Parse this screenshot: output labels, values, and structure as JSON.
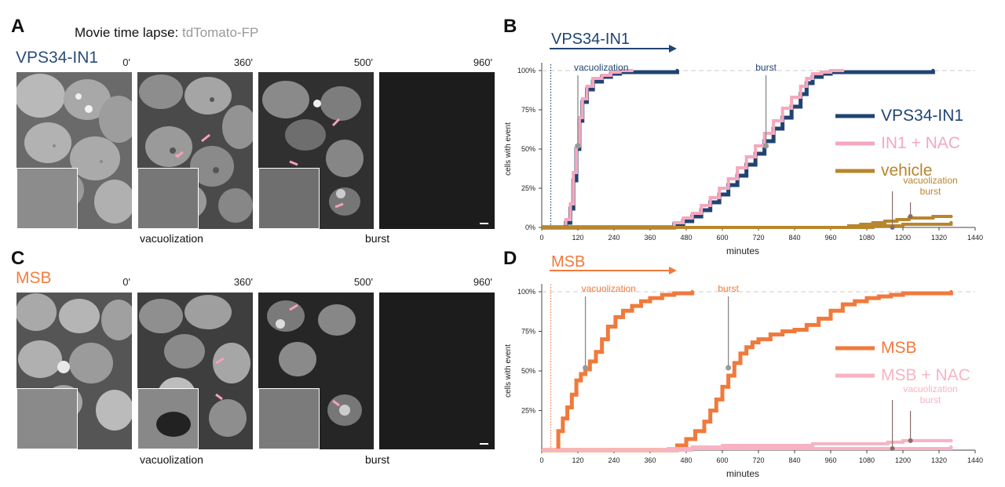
{
  "panels": {
    "A": "A",
    "B": "B",
    "C": "C",
    "D": "D"
  },
  "figure_title": {
    "prefix": "Movie time lapse: ",
    "fp": "tdTomato-FP"
  },
  "rowA": {
    "condition": "VPS34-IN1",
    "condition_color": "#2a4d7a",
    "timepoints": [
      "0'",
      "360'",
      "500'",
      "960'"
    ],
    "caption_left": "vacuolization",
    "caption_right": "burst"
  },
  "rowC": {
    "condition": "MSB",
    "condition_color": "#f08040",
    "timepoints": [
      "0'",
      "360'",
      "500'",
      "960'"
    ],
    "caption_left": "vacuolization",
    "caption_right": "burst"
  },
  "colors": {
    "vps": "#1f4473",
    "in1nac": "#f5a8bd",
    "vehicle": "#b8862e",
    "msb": "#f07a3c",
    "msbnac": "#f7b3c4",
    "arrow": "#f7a1b5"
  },
  "chart_data": [
    {
      "type": "line",
      "panel": "B",
      "header": "VPS34-IN1",
      "xlabel": "minutes",
      "ylabel": "cells with event",
      "xlim": [
        0,
        1440
      ],
      "ylim": [
        0,
        100
      ],
      "xticks": [
        0,
        120,
        240,
        360,
        480,
        600,
        720,
        840,
        960,
        1080,
        1200,
        1320,
        1440
      ],
      "yticks": [
        0,
        25,
        50,
        75,
        100
      ],
      "ytick_labels": [
        "0%",
        "25%",
        "50%",
        "75%",
        "100%"
      ],
      "annotations": [
        {
          "text": "vacuolization",
          "x": 120,
          "y": 52
        },
        {
          "text": "burst",
          "x": 745,
          "y": 52
        }
      ],
      "legend": [
        {
          "name": "VPS34-IN1",
          "color": "#1f4473"
        },
        {
          "name": "IN1 + NAC",
          "color": "#f5a8bd"
        },
        {
          "name": "vehicle",
          "color": "#b8862e"
        }
      ],
      "vehicle_labels": [
        "vacuolization",
        "burst"
      ],
      "series": [
        {
          "name": "VPS34-IN1",
          "event": "vacuolization",
          "x": [
            0,
            60,
            80,
            95,
            105,
            115,
            125,
            135,
            150,
            170,
            200,
            230,
            260,
            300,
            350,
            400,
            450
          ],
          "y": [
            0,
            0,
            3,
            12,
            30,
            50,
            68,
            80,
            88,
            93,
            96,
            98,
            99,
            99,
            99,
            99,
            100
          ]
        },
        {
          "name": "IN1 + NAC",
          "event": "vacuolization",
          "x": [
            0,
            60,
            80,
            95,
            105,
            115,
            125,
            135,
            150,
            170,
            200,
            230,
            260,
            300
          ],
          "y": [
            0,
            0,
            5,
            15,
            35,
            52,
            70,
            82,
            90,
            95,
            97,
            99,
            100,
            100
          ]
        },
        {
          "name": "VPS34-IN1",
          "event": "burst",
          "x": [
            0,
            400,
            440,
            470,
            500,
            530,
            560,
            590,
            620,
            650,
            680,
            710,
            740,
            770,
            800,
            830,
            860,
            880,
            900,
            930,
            960,
            1000,
            1050,
            1100,
            1150,
            1200,
            1300
          ],
          "y": [
            0,
            0,
            2,
            4,
            7,
            11,
            16,
            21,
            27,
            33,
            40,
            47,
            55,
            63,
            70,
            77,
            85,
            92,
            96,
            98,
            99,
            99,
            99,
            99,
            99,
            99,
            100
          ]
        },
        {
          "name": "IN1 + NAC",
          "event": "burst",
          "x": [
            0,
            400,
            440,
            470,
            500,
            530,
            560,
            590,
            620,
            650,
            680,
            710,
            740,
            770,
            800,
            830,
            860,
            880,
            900,
            930,
            960,
            1000
          ],
          "y": [
            0,
            0,
            3,
            6,
            9,
            14,
            19,
            25,
            31,
            38,
            45,
            52,
            60,
            68,
            76,
            83,
            90,
            95,
            98,
            99,
            100,
            100
          ]
        },
        {
          "name": "vehicle",
          "event": "vacuolization",
          "x": [
            0,
            980,
            1020,
            1060,
            1100,
            1140,
            1180,
            1220,
            1260,
            1300,
            1360
          ],
          "y": [
            0,
            0,
            1,
            2,
            3,
            4,
            5,
            6,
            6,
            7,
            7
          ]
        },
        {
          "name": "vehicle",
          "event": "burst",
          "x": [
            0,
            1000,
            1100,
            1200,
            1280,
            1360
          ],
          "y": [
            0,
            0,
            1,
            2,
            2,
            3
          ]
        }
      ]
    },
    {
      "type": "line",
      "panel": "D",
      "header": "MSB",
      "xlabel": "minutes",
      "ylabel": "cells with event",
      "xlim": [
        0,
        1440
      ],
      "ylim": [
        0,
        100
      ],
      "xticks": [
        0,
        120,
        240,
        360,
        480,
        600,
        720,
        840,
        960,
        1080,
        1200,
        1320,
        1440
      ],
      "yticks": [
        25,
        50,
        75,
        100
      ],
      "ytick_labels": [
        "25%",
        "50%",
        "75%",
        "100%"
      ],
      "annotations": [
        {
          "text": "vacuolization",
          "x": 145,
          "y": 52
        },
        {
          "text": "burst",
          "x": 620,
          "y": 52
        }
      ],
      "legend": [
        {
          "name": "MSB",
          "color": "#f07a3c"
        },
        {
          "name": "MSB + NAC",
          "color": "#f7b3c4"
        }
      ],
      "nac_labels": [
        "vacuolization",
        "burst"
      ],
      "series": [
        {
          "name": "MSB",
          "event": "vacuolization",
          "x": [
            0,
            40,
            55,
            70,
            85,
            100,
            115,
            130,
            145,
            160,
            180,
            200,
            220,
            245,
            270,
            300,
            330,
            360,
            400,
            440,
            500
          ],
          "y": [
            0,
            0,
            12,
            20,
            27,
            35,
            44,
            48,
            51,
            56,
            62,
            70,
            78,
            84,
            88,
            91,
            94,
            96,
            98,
            99,
            100
          ]
        },
        {
          "name": "MSB",
          "event": "burst",
          "x": [
            0,
            380,
            450,
            480,
            510,
            540,
            560,
            580,
            600,
            620,
            640,
            660,
            680,
            700,
            720,
            760,
            800,
            840,
            880,
            920,
            960,
            1000,
            1040,
            1080,
            1120,
            1160,
            1200,
            1260,
            1360
          ],
          "y": [
            0,
            0,
            3,
            7,
            12,
            18,
            25,
            32,
            40,
            47,
            55,
            61,
            65,
            68,
            70,
            73,
            75,
            76,
            79,
            83,
            88,
            92,
            94,
            96,
            97,
            98,
            99,
            99,
            100
          ]
        },
        {
          "name": "MSB + NAC",
          "event": "vacuolization",
          "x": [
            0,
            360,
            420,
            500,
            600,
            700,
            800,
            900,
            1000,
            1100,
            1150,
            1200,
            1360
          ],
          "y": [
            0,
            0,
            1,
            2,
            3,
            3,
            3,
            4,
            4,
            4,
            5,
            6,
            6
          ]
        },
        {
          "name": "MSB + NAC",
          "event": "burst",
          "x": [
            0,
            400,
            500,
            600,
            800,
            1000,
            1200,
            1360
          ],
          "y": [
            0,
            0,
            1,
            1,
            1,
            1,
            1,
            2
          ]
        }
      ]
    }
  ]
}
